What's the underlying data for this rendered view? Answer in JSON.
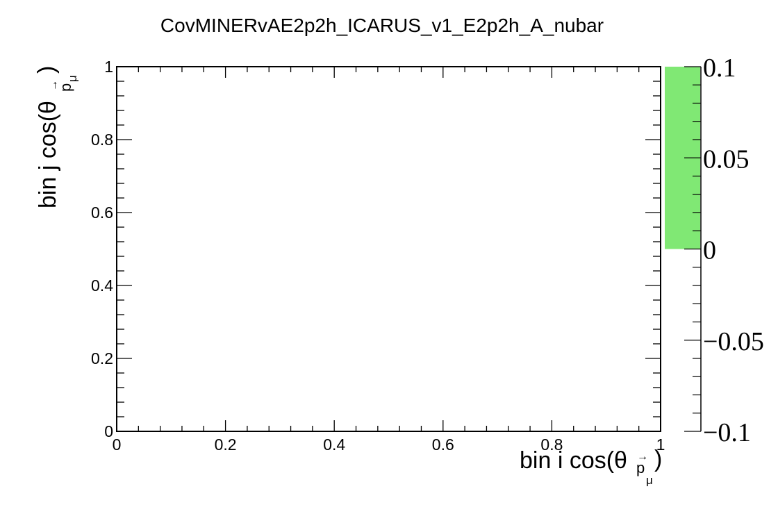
{
  "chart_data": {
    "type": "heatmap",
    "title": "CovMINERvAE2p2h_ICARUS_v1_E2p2h_A_nubar",
    "xlabel": {
      "main": "bin i cos(θ",
      "vec": "p",
      "sub": "μ",
      "close": ")"
    },
    "ylabel": {
      "main": "bin j cos(θ",
      "vec": "p",
      "sub": "μ",
      "close": ")"
    },
    "xlim": [
      0,
      1
    ],
    "ylim": [
      0,
      1
    ],
    "x_ticks": [
      "0",
      "0.2",
      "0.4",
      "0.6",
      "0.8",
      "1"
    ],
    "x_tick_values": [
      0,
      0.2,
      0.4,
      0.6,
      0.8,
      1
    ],
    "y_ticks": [
      "0",
      "0.2",
      "0.4",
      "0.6",
      "0.8",
      "1"
    ],
    "y_tick_values": [
      0,
      0.2,
      0.4,
      0.6,
      0.8,
      1
    ],
    "cells": [],
    "grid": false,
    "colorbar": {
      "range": [
        -0.1,
        0.1
      ],
      "ticks": [
        "−0.1",
        "−0.05",
        "0",
        "0.05",
        "0.1"
      ],
      "tick_values": [
        -0.1,
        -0.05,
        0,
        0.05,
        0.1
      ],
      "filled_range": [
        0,
        0.1
      ],
      "fill_color": "#80e874"
    }
  }
}
